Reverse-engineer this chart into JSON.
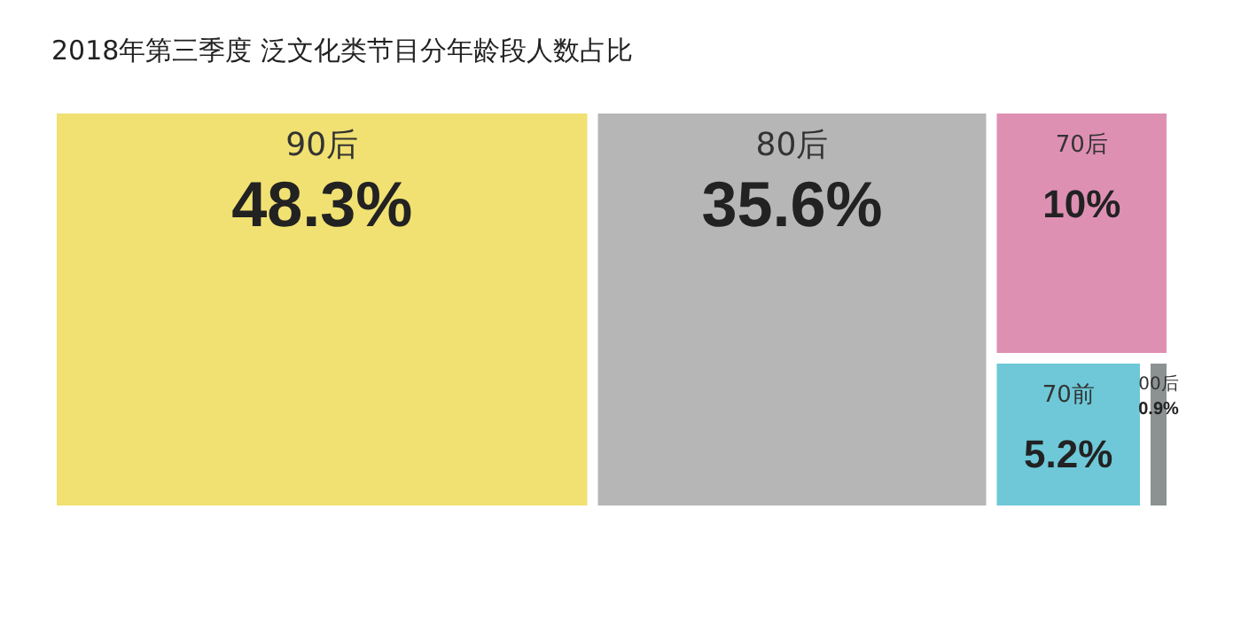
{
  "chart_data": {
    "type": "other",
    "title": "2018年第三季度 泛文化类节目分年龄段人数占比",
    "categories": [
      "90后",
      "80后",
      "70后",
      "70前",
      "00后"
    ],
    "values": [
      48.3,
      35.6,
      10,
      5.2,
      0.9
    ],
    "value_labels": [
      "48.3%",
      "35.6%",
      "10%",
      "5.2%",
      "0.9%"
    ],
    "colors": [
      "#f0e172",
      "#b6b6b6",
      "#de90b3",
      "#6ec8d8",
      "#8c9292"
    ]
  }
}
